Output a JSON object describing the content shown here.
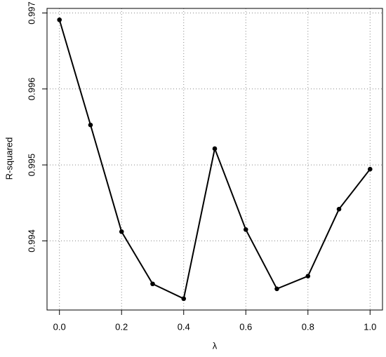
{
  "chart_data": {
    "type": "line",
    "x": [
      0,
      0.1,
      0.2,
      0.3,
      0.4,
      0.5,
      0.6,
      0.7,
      0.8,
      0.9,
      1
    ],
    "values": [
      0.99691,
      0.995526,
      0.994121,
      0.993434,
      0.993239,
      0.995214,
      0.994149,
      0.993369,
      0.993536,
      0.994418,
      0.994944
    ],
    "color": "#000000",
    "xlabel": "λ",
    "ylabel": "R-squared",
    "xlim": [
      -0.04,
      1.04
    ],
    "xticks": [
      {
        "value": 0,
        "label": "0.0"
      },
      0.2,
      0.4,
      0.6,
      0.8,
      {
        "value": 1,
        "label": "1.0"
      }
    ],
    "ylim": [
      0.99309,
      0.99706
    ],
    "yticks": [
      0.994,
      0.995,
      0.996,
      0.997
    ],
    "grid": true
  }
}
